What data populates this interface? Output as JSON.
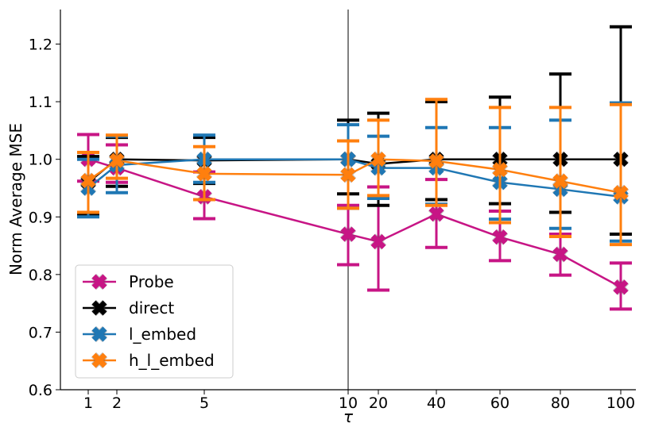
{
  "chart_data": {
    "type": "line",
    "xlabel": "τ",
    "ylabel": "Norm Average MSE",
    "ylim": [
      0.6,
      1.26
    ],
    "yticks": [
      "0.6",
      "0.7",
      "0.8",
      "0.9",
      "1.0",
      "1.1",
      "1.2"
    ],
    "categories": [
      "1",
      "2",
      "5",
      "10",
      "20",
      "40",
      "60",
      "80",
      "100"
    ],
    "divider_after": "10",
    "grid": false,
    "legend_position": "lower-left",
    "series": [
      {
        "name": "Probe",
        "color": "#c71585",
        "values": [
          1.0,
          0.985,
          0.935,
          0.87,
          0.857,
          0.905,
          0.865,
          0.835,
          0.778
        ],
        "err_low": [
          0.962,
          0.96,
          0.897,
          0.817,
          0.773,
          0.847,
          0.824,
          0.799,
          0.74
        ],
        "err_high": [
          1.043,
          1.025,
          0.978,
          0.92,
          0.952,
          0.965,
          0.91,
          0.87,
          0.82
        ]
      },
      {
        "name": "direct",
        "color": "#000000",
        "values": [
          0.96,
          1.0,
          0.998,
          1.0,
          0.992,
          1.0,
          1.0,
          1.0,
          1.0
        ],
        "err_low": [
          0.905,
          0.953,
          0.958,
          0.94,
          0.92,
          0.93,
          0.923,
          0.908,
          0.87
        ],
        "err_high": [
          1.005,
          1.038,
          1.038,
          1.068,
          1.08,
          1.1,
          1.108,
          1.148,
          1.23
        ]
      },
      {
        "name": "l_embed",
        "color": "#1f77b4",
        "values": [
          0.95,
          0.99,
          1.0,
          1.0,
          0.985,
          0.985,
          0.96,
          0.948,
          0.935
        ],
        "err_low": [
          0.9,
          0.942,
          0.96,
          0.915,
          0.932,
          0.922,
          0.896,
          0.88,
          0.858
        ],
        "err_high": [
          1.0,
          1.04,
          1.042,
          1.06,
          1.04,
          1.055,
          1.055,
          1.068,
          1.098
        ]
      },
      {
        "name": "h_l_embed",
        "color": "#ff7f0e",
        "values": [
          0.963,
          0.998,
          0.975,
          0.973,
          1.0,
          0.997,
          0.982,
          0.962,
          0.942
        ],
        "err_low": [
          0.908,
          0.967,
          0.93,
          0.915,
          0.937,
          0.92,
          0.89,
          0.866,
          0.852
        ],
        "err_high": [
          1.012,
          1.042,
          1.022,
          1.032,
          1.068,
          1.104,
          1.09,
          1.09,
          1.095
        ]
      }
    ]
  }
}
